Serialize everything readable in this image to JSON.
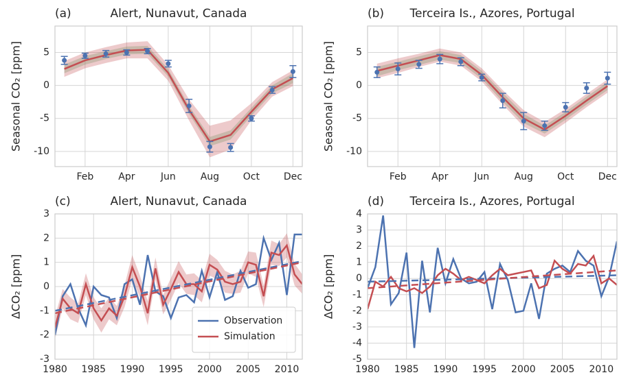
{
  "chart_data": [
    {
      "type": "line",
      "label": "(a)",
      "title": "Alert, Nunavut, Canada",
      "ylabel": "Seasonal CO₂ [ppm]",
      "x": [
        1,
        2,
        3,
        4,
        5,
        6,
        7,
        8,
        9,
        10,
        11,
        12
      ],
      "xlim": [
        0.55,
        12.45
      ],
      "ylim": [
        -12.3,
        9.0
      ],
      "xticks": [
        {
          "value": 2,
          "label": "Feb"
        },
        {
          "value": 4,
          "label": "Apr"
        },
        {
          "value": 6,
          "label": "Jun"
        },
        {
          "value": 8,
          "label": "Aug"
        },
        {
          "value": 10,
          "label": "Oct"
        },
        {
          "value": 12,
          "label": "Dec"
        }
      ],
      "yticks": [
        -10,
        -5,
        0,
        5
      ],
      "grid": true,
      "series": [
        {
          "style": "band",
          "color": "#55a868",
          "values": [
            2.5,
            3.8,
            4.6,
            5.3,
            5.4,
            1.9,
            -3.7,
            -8.5,
            -7.5,
            -4.0,
            -0.6,
            1.1
          ],
          "band": [
            0.65,
            0.65,
            0.6,
            0.6,
            0.6,
            0.55,
            0.6,
            0.7,
            0.7,
            0.6,
            0.6,
            0.75
          ]
        },
        {
          "style": "line",
          "color": "#c44e52",
          "values": [
            2.5,
            3.8,
            4.6,
            5.3,
            5.4,
            1.9,
            -3.7,
            -8.5,
            -7.5,
            -4.0,
            -0.6,
            1.1
          ],
          "band": [
            1.2,
            1.2,
            1.2,
            1.2,
            1.3,
            1.2,
            1.6,
            2.4,
            2.2,
            1.3,
            1.1,
            1.2
          ]
        },
        {
          "style": "errorbar",
          "color": "#4c72b0",
          "values": [
            3.8,
            4.5,
            4.8,
            5.0,
            5.2,
            3.3,
            -3.1,
            -9.3,
            -9.4,
            -5.0,
            -0.7,
            2.1
          ],
          "errors": [
            0.6,
            0.4,
            0.5,
            0.4,
            0.4,
            0.5,
            1.0,
            0.8,
            0.6,
            0.4,
            0.5,
            0.9
          ]
        }
      ]
    },
    {
      "type": "line",
      "label": "(b)",
      "title": "Terceira Is., Azores, Portugal",
      "ylabel": "Seasonal CO₂ [ppm]",
      "x": [
        1,
        2,
        3,
        4,
        5,
        6,
        7,
        8,
        9,
        10,
        11,
        12
      ],
      "xlim": [
        0.55,
        12.45
      ],
      "ylim": [
        -12.3,
        9.0
      ],
      "xticks": [
        {
          "value": 2,
          "label": "Feb"
        },
        {
          "value": 4,
          "label": "Apr"
        },
        {
          "value": 6,
          "label": "Jun"
        },
        {
          "value": 8,
          "label": "Aug"
        },
        {
          "value": 10,
          "label": "Oct"
        },
        {
          "value": 12,
          "label": "Dec"
        }
      ],
      "yticks": [
        -10,
        -5,
        0,
        5
      ],
      "grid": true,
      "series": [
        {
          "style": "band",
          "color": "#55a868",
          "values": [
            2.1,
            2.95,
            3.75,
            4.55,
            4.0,
            1.6,
            -1.8,
            -5.0,
            -6.7,
            -4.6,
            -2.3,
            -0.1
          ],
          "band": [
            0.7,
            0.65,
            0.65,
            0.65,
            0.6,
            0.6,
            0.7,
            0.7,
            0.6,
            0.6,
            0.6,
            0.6
          ]
        },
        {
          "style": "line",
          "color": "#c44e52",
          "values": [
            2.2,
            3.0,
            3.8,
            4.6,
            4.0,
            1.6,
            -1.8,
            -5.0,
            -6.7,
            -4.6,
            -2.3,
            -0.1
          ],
          "band": [
            1.1,
            1.1,
            1.0,
            1.0,
            1.0,
            1.0,
            1.1,
            1.25,
            1.15,
            1.05,
            1.0,
            1.0
          ]
        },
        {
          "style": "errorbar",
          "color": "#4c72b0",
          "values": [
            2.0,
            2.5,
            3.2,
            4.0,
            3.6,
            1.2,
            -2.3,
            -5.4,
            -6.1,
            -3.3,
            -0.4,
            1.1
          ],
          "errors": [
            0.8,
            0.9,
            0.6,
            0.7,
            0.6,
            0.5,
            1.1,
            1.3,
            0.7,
            0.7,
            0.8,
            0.9
          ]
        }
      ]
    },
    {
      "type": "line",
      "label": "(c)",
      "title": "Alert, Nunavut, Canada",
      "ylabel": "ΔCO₂ [ppm]",
      "x": [
        1980,
        1981,
        1982,
        1983,
        1984,
        1985,
        1986,
        1987,
        1988,
        1989,
        1990,
        1991,
        1992,
        1993,
        1994,
        1995,
        1996,
        1997,
        1998,
        1999,
        2000,
        2001,
        2002,
        2003,
        2004,
        2005,
        2006,
        2007,
        2008,
        2009,
        2010,
        2011,
        2012
      ],
      "xlim": [
        1980,
        2012
      ],
      "ylim": [
        -3,
        3
      ],
      "xticks": [
        1980,
        1985,
        1990,
        1995,
        2000,
        2005,
        2010
      ],
      "yticks": [
        -3,
        -2,
        -1,
        0,
        1,
        2,
        3
      ],
      "grid": true,
      "legend": "lower right",
      "series": [
        {
          "name": "Observation",
          "style": "line",
          "color": "#4c72b0",
          "values": [
            -2.0,
            -0.4,
            0.1,
            -0.9,
            -1.6,
            0.0,
            -0.35,
            -0.45,
            -1.3,
            0.1,
            0.3,
            -0.75,
            1.3,
            -0.2,
            -0.4,
            -1.3,
            -0.45,
            -0.35,
            -0.65,
            0.65,
            -0.45,
            0.6,
            -0.55,
            -0.4,
            0.65,
            -0.05,
            0.1,
            2.0,
            1.1,
            1.8,
            -0.35,
            2.15,
            2.15
          ]
        },
        {
          "name": "Simulation",
          "style": "line",
          "color": "#c44e52",
          "values": [
            -1.7,
            -0.5,
            -0.9,
            -1.1,
            0.1,
            -0.9,
            -1.4,
            -0.9,
            -1.2,
            -0.4,
            0.8,
            0.0,
            -1.1,
            0.75,
            -0.75,
            -0.1,
            0.6,
            0.1,
            0.1,
            -0.2,
            0.9,
            0.7,
            0.2,
            0.1,
            0.2,
            1.0,
            0.9,
            -0.4,
            1.4,
            1.3,
            1.7,
            0.5,
            0.1
          ],
          "band": [
            0.45,
            0.4,
            0.45,
            0.4,
            0.45,
            0.45,
            0.5,
            0.45,
            0.4,
            0.45,
            0.5,
            0.45,
            0.5,
            0.45,
            0.4,
            0.45,
            0.45,
            0.4,
            0.45,
            0.45,
            0.45,
            0.4,
            0.45,
            0.4,
            0.45,
            0.45,
            0.5,
            0.45,
            0.5,
            0.45,
            0.5,
            0.45,
            0.4
          ]
        },
        {
          "style": "dashed",
          "color": "#4c72b0",
          "x": [
            1980,
            2012
          ],
          "values": [
            -1.0,
            1.05
          ]
        },
        {
          "style": "dashed",
          "color": "#c44e52",
          "x": [
            1980,
            2012
          ],
          "values": [
            -1.1,
            1.0
          ]
        }
      ]
    },
    {
      "type": "line",
      "label": "(d)",
      "title": "Terceira Is., Azores, Portugal",
      "ylabel": "ΔCO₂ [ppm]",
      "x": [
        1980,
        1981,
        1982,
        1983,
        1984,
        1985,
        1986,
        1987,
        1988,
        1989,
        1990,
        1991,
        1992,
        1993,
        1994,
        1995,
        1996,
        1997,
        1998,
        1999,
        2000,
        2001,
        2002,
        2003,
        2004,
        2005,
        2006,
        2007,
        2008,
        2009,
        2010,
        2011,
        2012
      ],
      "xlim": [
        1980,
        2012
      ],
      "ylim": [
        -5,
        4
      ],
      "xticks": [
        1980,
        1985,
        1990,
        1995,
        2000,
        2005,
        2010
      ],
      "yticks": [
        -5,
        -4,
        -3,
        -2,
        -1,
        0,
        1,
        2,
        3,
        4
      ],
      "grid": true,
      "series": [
        {
          "style": "line",
          "color": "#4c72b0",
          "values": [
            -0.6,
            0.7,
            3.9,
            -1.6,
            -0.9,
            1.6,
            -4.3,
            1.1,
            -2.1,
            1.9,
            -0.3,
            1.2,
            0.0,
            -0.3,
            -0.2,
            0.4,
            -1.9,
            0.9,
            -0.1,
            -2.1,
            -2.0,
            -0.3,
            -2.5,
            0.3,
            0.6,
            0.8,
            0.4,
            1.7,
            1.1,
            0.8,
            -1.1,
            0.1,
            2.3
          ]
        },
        {
          "style": "line",
          "color": "#c44e52",
          "values": [
            -1.9,
            -0.2,
            -0.5,
            0.1,
            -0.6,
            -0.8,
            -0.6,
            -0.9,
            -0.5,
            0.2,
            0.6,
            0.3,
            -0.1,
            0.1,
            -0.1,
            -0.3,
            0.2,
            0.6,
            0.2,
            0.3,
            0.4,
            0.5,
            -0.6,
            -0.4,
            1.1,
            0.6,
            0.3,
            0.9,
            0.8,
            1.4,
            -0.3,
            0.0,
            -0.4
          ]
        },
        {
          "style": "dashed",
          "color": "#4c72b0",
          "x": [
            1980,
            2012
          ],
          "values": [
            -0.2,
            0.2
          ]
        },
        {
          "style": "dashed",
          "color": "#c44e52",
          "x": [
            1980,
            2012
          ],
          "values": [
            -0.6,
            0.5
          ]
        }
      ]
    }
  ]
}
